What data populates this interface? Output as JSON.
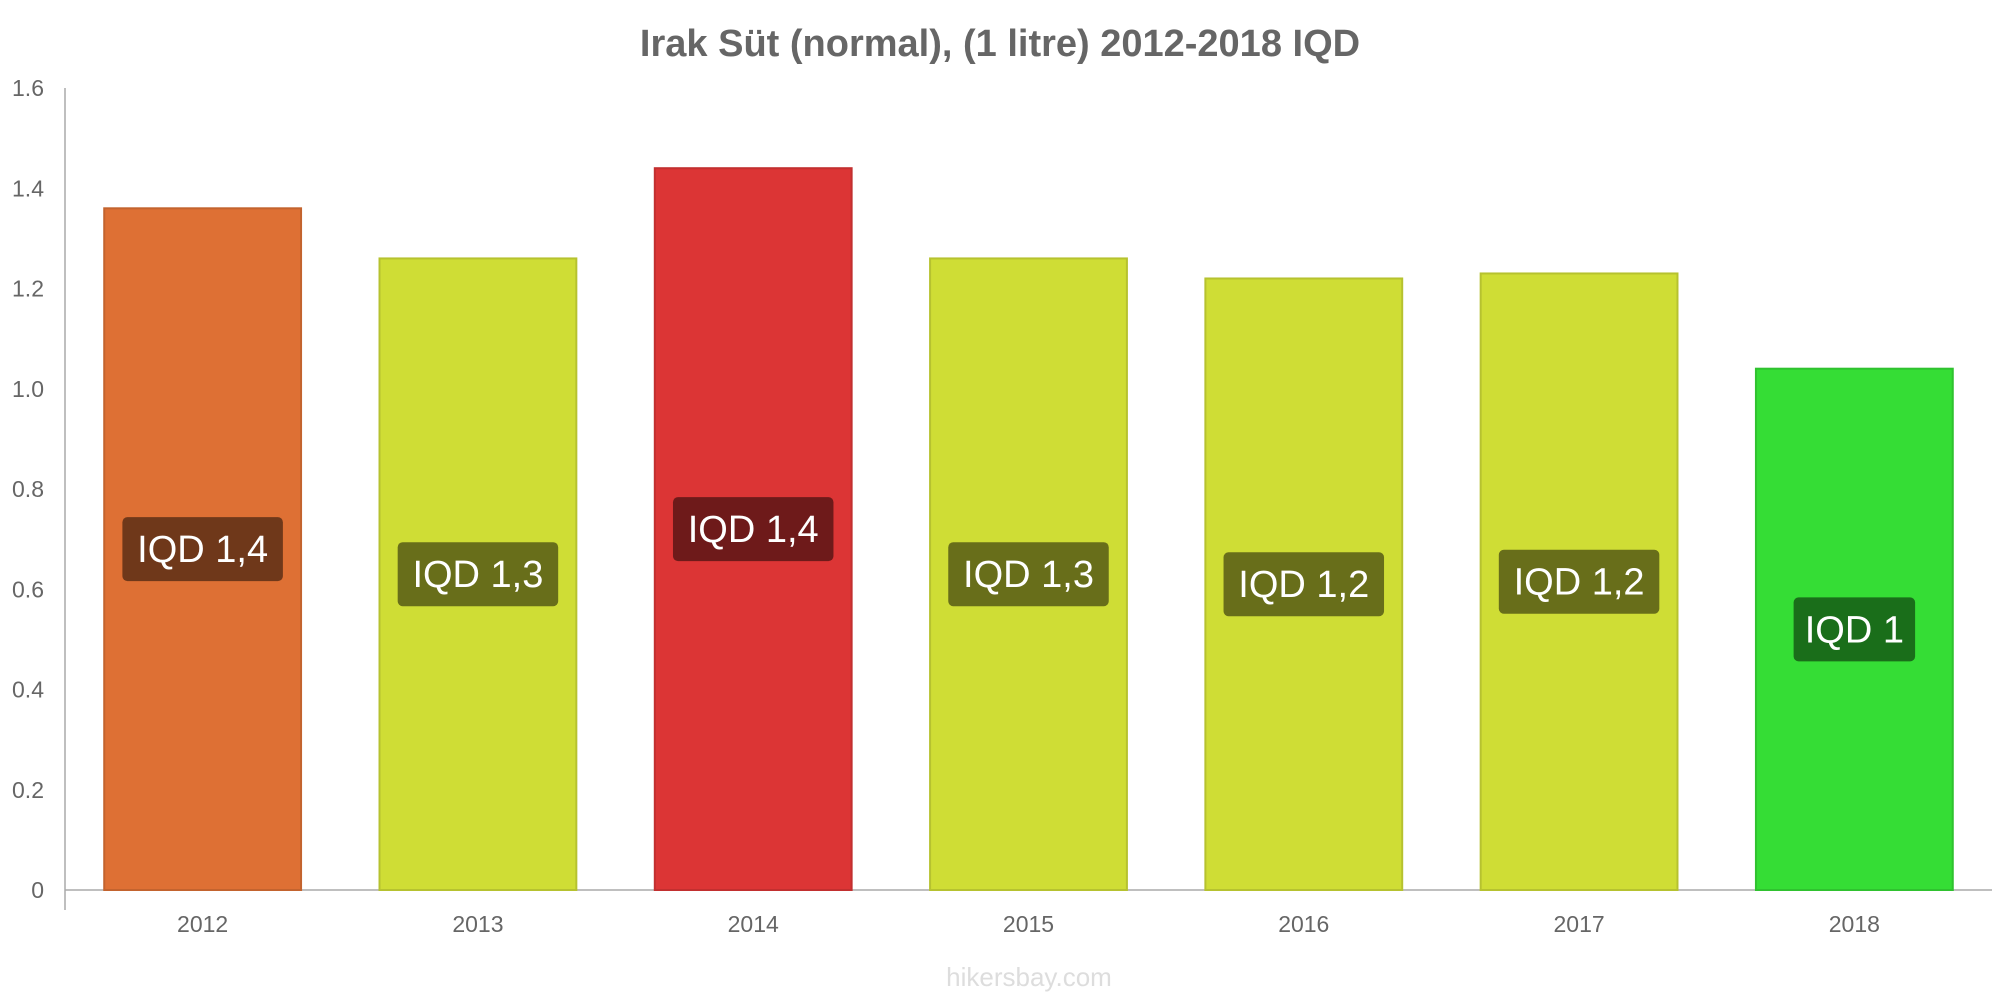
{
  "chart_data": {
    "type": "bar",
    "title": "Irak Süt (normal), (1 litre) 2012-2018 IQD",
    "xlabel": "",
    "ylabel": "",
    "categories": [
      "2012",
      "2013",
      "2014",
      "2015",
      "2016",
      "2017",
      "2018"
    ],
    "values": [
      1.36,
      1.26,
      1.44,
      1.26,
      1.22,
      1.23,
      1.04
    ],
    "data_labels": [
      "IQD 1,4",
      "IQD 1,3",
      "IQD 1,4",
      "IQD 1,3",
      "IQD 1,2",
      "IQD 1,2",
      "IQD 1"
    ],
    "bar_colors": [
      "#de7034",
      "#cfdd35",
      "#dc3535",
      "#cfdd35",
      "#cfdd35",
      "#cfdd35",
      "#35dd35"
    ],
    "label_bg_colors": [
      "#6f381a",
      "#686e1a",
      "#6e1a1a",
      "#686e1a",
      "#686e1a",
      "#686e1a",
      "#1a6e1a"
    ],
    "ylim": [
      0,
      1.6
    ],
    "yticks": [
      0,
      0.2,
      0.4,
      0.6,
      0.8,
      1.0,
      1.2,
      1.4,
      1.6
    ],
    "ytick_labels": [
      "0",
      "0.2",
      "0.4",
      "0.6",
      "0.8",
      "1.0",
      "1.2",
      "1.4",
      "1.6"
    ],
    "grid": false,
    "legend": "none"
  },
  "watermark": "hikersbay.com"
}
